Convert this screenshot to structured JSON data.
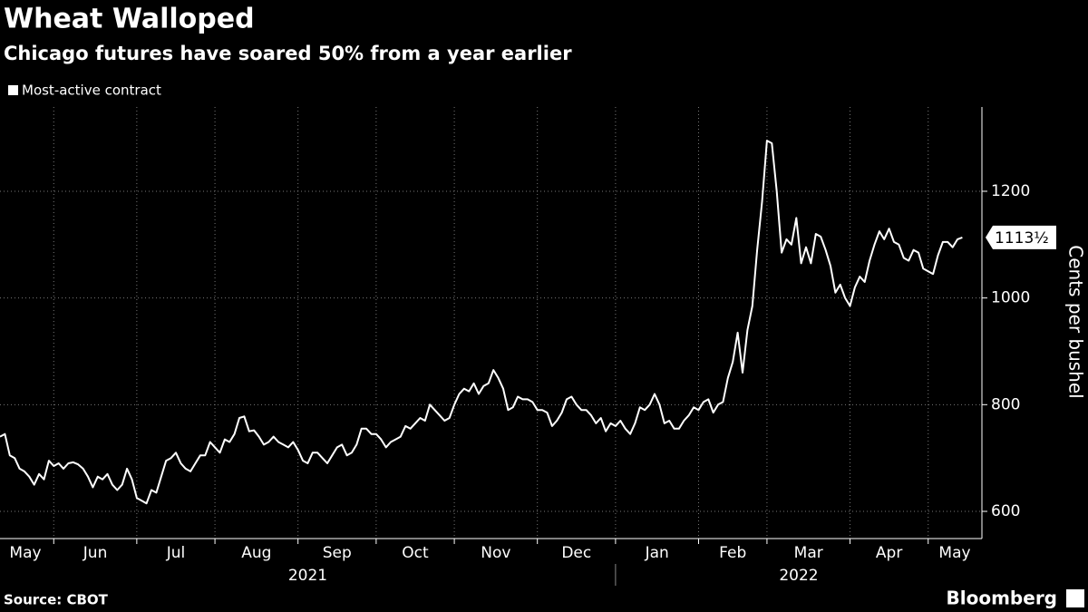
{
  "chart_data": {
    "type": "line",
    "title": "Wheat Walloped",
    "subtitle": "Chicago futures have soared 50% from a year earlier",
    "y_axis_label": "Cents per bushel",
    "source": "Source: CBOT",
    "brand": "Bloomberg",
    "series": [
      {
        "name": "Most-active contract",
        "color": "#ffffff",
        "values": [
          740,
          745,
          705,
          700,
          680,
          675,
          665,
          650,
          670,
          660,
          695,
          685,
          690,
          680,
          690,
          692,
          688,
          680,
          665,
          645,
          665,
          660,
          670,
          650,
          640,
          650,
          680,
          660,
          625,
          620,
          615,
          640,
          635,
          665,
          695,
          700,
          710,
          690,
          680,
          675,
          690,
          705,
          705,
          730,
          720,
          710,
          735,
          730,
          745,
          775,
          778,
          750,
          752,
          740,
          725,
          730,
          740,
          730,
          725,
          720,
          730,
          715,
          695,
          690,
          710,
          710,
          700,
          690,
          705,
          720,
          725,
          705,
          710,
          725,
          755,
          755,
          745,
          745,
          735,
          720,
          730,
          735,
          740,
          760,
          755,
          765,
          775,
          770,
          800,
          790,
          780,
          770,
          775,
          800,
          820,
          830,
          825,
          840,
          820,
          835,
          840,
          865,
          850,
          830,
          790,
          795,
          815,
          810,
          810,
          805,
          790,
          790,
          785,
          760,
          770,
          785,
          810,
          815,
          800,
          790,
          790,
          780,
          765,
          775,
          750,
          765,
          760,
          770,
          755,
          745,
          765,
          795,
          790,
          800,
          820,
          800,
          765,
          770,
          755,
          755,
          770,
          780,
          795,
          790,
          805,
          810,
          785,
          800,
          805,
          850,
          880,
          935,
          860,
          940,
          985,
          1090,
          1180,
          1295,
          1290,
          1200,
          1085,
          1110,
          1100,
          1150,
          1065,
          1095,
          1065,
          1120,
          1115,
          1090,
          1060,
          1010,
          1025,
          1000,
          985,
          1020,
          1040,
          1030,
          1070,
          1100,
          1125,
          1110,
          1130,
          1105,
          1100,
          1075,
          1070,
          1090,
          1085,
          1055,
          1050,
          1045,
          1080,
          1105,
          1105,
          1095,
          1110,
          1113.5
        ],
        "last_value_label": "1113½"
      }
    ],
    "xlim": [
      0,
      201
    ],
    "xticks": [
      {
        "value": -8,
        "label": "May"
      },
      {
        "value": 11,
        "label": "Jun"
      },
      {
        "value": 28,
        "label": "Jul"
      },
      {
        "value": 44,
        "label": "Aug"
      },
      {
        "value": 61,
        "label": "Sep"
      },
      {
        "value": 77,
        "label": "Oct"
      },
      {
        "value": 93,
        "label": "Nov"
      },
      {
        "value": 110,
        "label": "Dec"
      },
      {
        "value": 126,
        "label": "Jan"
      },
      {
        "value": 143,
        "label": "Feb"
      },
      {
        "value": 157,
        "label": "Mar"
      },
      {
        "value": 174,
        "label": "Apr"
      },
      {
        "value": 190,
        "label": "May"
      }
    ],
    "years": [
      {
        "value": 0,
        "label": "2021"
      },
      {
        "value": 126,
        "label": "2022"
      }
    ],
    "ylim": [
      549,
      1358
    ],
    "yticks": [
      600,
      800,
      1000,
      1200
    ],
    "grid": true
  }
}
